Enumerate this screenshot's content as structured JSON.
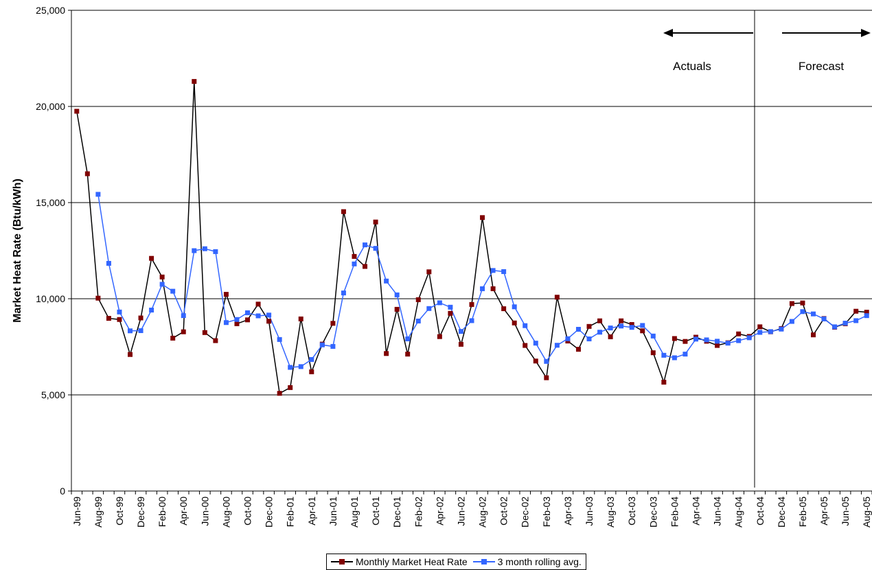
{
  "chart_data": {
    "type": "line",
    "ylabel": "Market Heat Rate (Btu/kWh)",
    "xlabel": "",
    "ylim": [
      0,
      25000
    ],
    "yticks": [
      0,
      5000,
      10000,
      15000,
      20000,
      25000
    ],
    "ytick_labels": [
      "0",
      "5,000",
      "10,000",
      "15,000",
      "20,000",
      "25,000"
    ],
    "grid": "horizontal",
    "categories": [
      "Jun-99",
      "Jul-99",
      "Aug-99",
      "Sep-99",
      "Oct-99",
      "Nov-99",
      "Dec-99",
      "Jan-00",
      "Feb-00",
      "Mar-00",
      "Apr-00",
      "May-00",
      "Jun-00",
      "Jul-00",
      "Aug-00",
      "Sep-00",
      "Oct-00",
      "Nov-00",
      "Dec-00",
      "Jan-01",
      "Feb-01",
      "Mar-01",
      "Apr-01",
      "May-01",
      "Jun-01",
      "Jul-01",
      "Aug-01",
      "Sep-01",
      "Oct-01",
      "Nov-01",
      "Dec-01",
      "Jan-02",
      "Feb-02",
      "Mar-02",
      "Apr-02",
      "May-02",
      "Jun-02",
      "Jul-02",
      "Aug-02",
      "Sep-02",
      "Oct-02",
      "Nov-02",
      "Dec-02",
      "Jan-03",
      "Feb-03",
      "Mar-03",
      "Apr-03",
      "May-03",
      "Jun-03",
      "Jul-03",
      "Aug-03",
      "Sep-03",
      "Oct-03",
      "Nov-03",
      "Dec-03",
      "Jan-04",
      "Feb-04",
      "Mar-04",
      "Apr-04",
      "May-04",
      "Jun-04",
      "Jul-04",
      "Aug-04",
      "Sep-04",
      "Oct-04",
      "Nov-04",
      "Dec-04",
      "Jan-05",
      "Feb-05",
      "Mar-05",
      "Apr-05",
      "May-05",
      "Jun-05",
      "Jul-05",
      "Aug-05"
    ],
    "tick_labels": [
      "Jun-99",
      "Aug-99",
      "Oct-99",
      "Dec-99",
      "Feb-00",
      "Apr-00",
      "Jun-00",
      "Aug-00",
      "Oct-00",
      "Dec-00",
      "Feb-01",
      "Apr-01",
      "Jun-01",
      "Aug-01",
      "Oct-01",
      "Dec-01",
      "Feb-02",
      "Apr-02",
      "Jun-02",
      "Aug-02",
      "Oct-02",
      "Dec-02",
      "Feb-03",
      "Apr-03",
      "Jun-03",
      "Aug-03",
      "Oct-03",
      "Dec-03",
      "Feb-04",
      "Apr-04",
      "Jun-04",
      "Aug-04",
      "Oct-04",
      "Dec-04",
      "Feb-05",
      "Apr-05",
      "Jun-05",
      "Aug-05"
    ],
    "series": [
      {
        "name": "Monthly Market Heat Rate",
        "color": "#800000",
        "marker": "square",
        "values": [
          19750,
          16500,
          10030,
          8980,
          8920,
          7100,
          9000,
          12100,
          11130,
          7950,
          8280,
          21300,
          8240,
          7820,
          10230,
          8700,
          8900,
          9720,
          8830,
          5080,
          5380,
          8950,
          6200,
          7640,
          8720,
          14530,
          12200,
          11680,
          13990,
          7150,
          9450,
          7120,
          9950,
          11400,
          8030,
          9240,
          7630,
          9700,
          14220,
          10520,
          9480,
          8740,
          7570,
          6760,
          5890,
          10080,
          7800,
          7370,
          8560,
          8850,
          8020,
          8850,
          8660,
          8330,
          7190,
          5660,
          7930,
          7780,
          8000,
          7790,
          7570,
          7710,
          8170,
          8040,
          8540,
          8280,
          8450,
          9750,
          9780,
          8120,
          8970,
          8520,
          8700,
          9350,
          9300
        ]
      },
      {
        "name": "3 month rolling avg.",
        "color": "#3366ff",
        "marker": "square",
        "values": [
          null,
          null,
          15430,
          11840,
          9310,
          8330,
          8340,
          9410,
          10750,
          10390,
          9120,
          12500,
          12600,
          12450,
          8760,
          8920,
          9270,
          9110,
          9150,
          7880,
          6430,
          6470,
          6840,
          7600,
          7520,
          10300,
          11810,
          12800,
          12620,
          10920,
          10200,
          7910,
          8840,
          9490,
          9790,
          9560,
          8300,
          8860,
          10520,
          11470,
          11410,
          9580,
          8600,
          7690,
          6740,
          7580,
          7920,
          8410,
          7910,
          8260,
          8480,
          8580,
          8510,
          8610,
          8060,
          7060,
          6930,
          7120,
          7900,
          7860,
          7790,
          7690,
          7820,
          7970,
          8250,
          8290,
          8420,
          8820,
          9330,
          9210,
          8950,
          8540,
          8730,
          8860,
          9120
        ]
      }
    ],
    "annotations": [
      {
        "text": "Actuals",
        "arrow": "left"
      },
      {
        "text": "Forecast",
        "arrow": "right"
      }
    ],
    "divider_after": "Sep-04",
    "legend_position": "bottom"
  }
}
